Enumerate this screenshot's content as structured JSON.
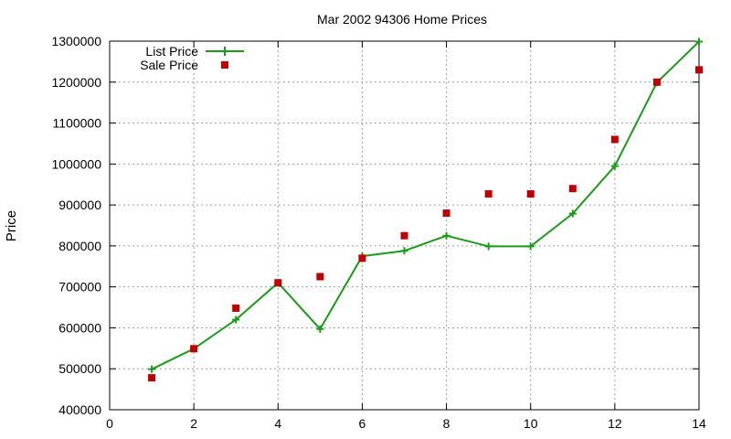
{
  "chart_data": {
    "type": "line",
    "title": "Mar 2002 94306 Home Prices",
    "xlabel": "",
    "ylabel": "Price",
    "xlim": [
      0,
      14
    ],
    "ylim": [
      400000,
      1300000
    ],
    "xticks": [
      0,
      2,
      4,
      6,
      8,
      10,
      12,
      14
    ],
    "yticks": [
      400000,
      500000,
      600000,
      700000,
      800000,
      900000,
      1000000,
      1100000,
      1200000,
      1300000
    ],
    "grid": true,
    "legend_position": "top-left",
    "series": [
      {
        "name": "List Price",
        "style": "line-points",
        "marker": "plus",
        "color": "#1a9b1a",
        "x": [
          1,
          2,
          3,
          4,
          5,
          6,
          7,
          8,
          9,
          10,
          11,
          12,
          13,
          14
        ],
        "y": [
          499000,
          549000,
          620000,
          710000,
          597000,
          775000,
          788000,
          825000,
          799000,
          799000,
          879000,
          995000,
          1199000,
          1299000
        ]
      },
      {
        "name": "Sale Price",
        "style": "points",
        "marker": "square",
        "color": "#c00000",
        "x": [
          1,
          2,
          3,
          4,
          5,
          6,
          7,
          8,
          9,
          10,
          11,
          12,
          13,
          14
        ],
        "y": [
          478000,
          549000,
          648000,
          710000,
          725000,
          770000,
          825000,
          880000,
          927000,
          927000,
          940000,
          1060000,
          1200000,
          1230000
        ]
      }
    ]
  }
}
